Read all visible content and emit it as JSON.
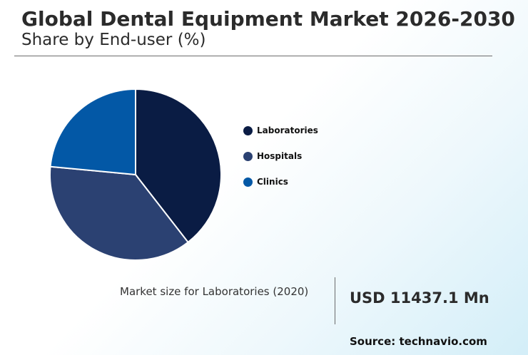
{
  "header": {
    "title": "Global Dental Equipment Market 2026-2030",
    "subtitle": "Share by End-user (%)"
  },
  "chart_data": {
    "type": "pie",
    "categories": [
      "Laboratories",
      "Hospitals",
      "Clinics"
    ],
    "values": [
      39.5,
      37.0,
      23.5
    ],
    "colors": [
      "#0a1c44",
      "#2b4172",
      "#0358a6"
    ],
    "legend_position": "right"
  },
  "footer": {
    "market_label": "Market size for Laboratories (2020)",
    "market_value": "USD 11437.1 Mn",
    "source": "Source: technavio.com"
  }
}
